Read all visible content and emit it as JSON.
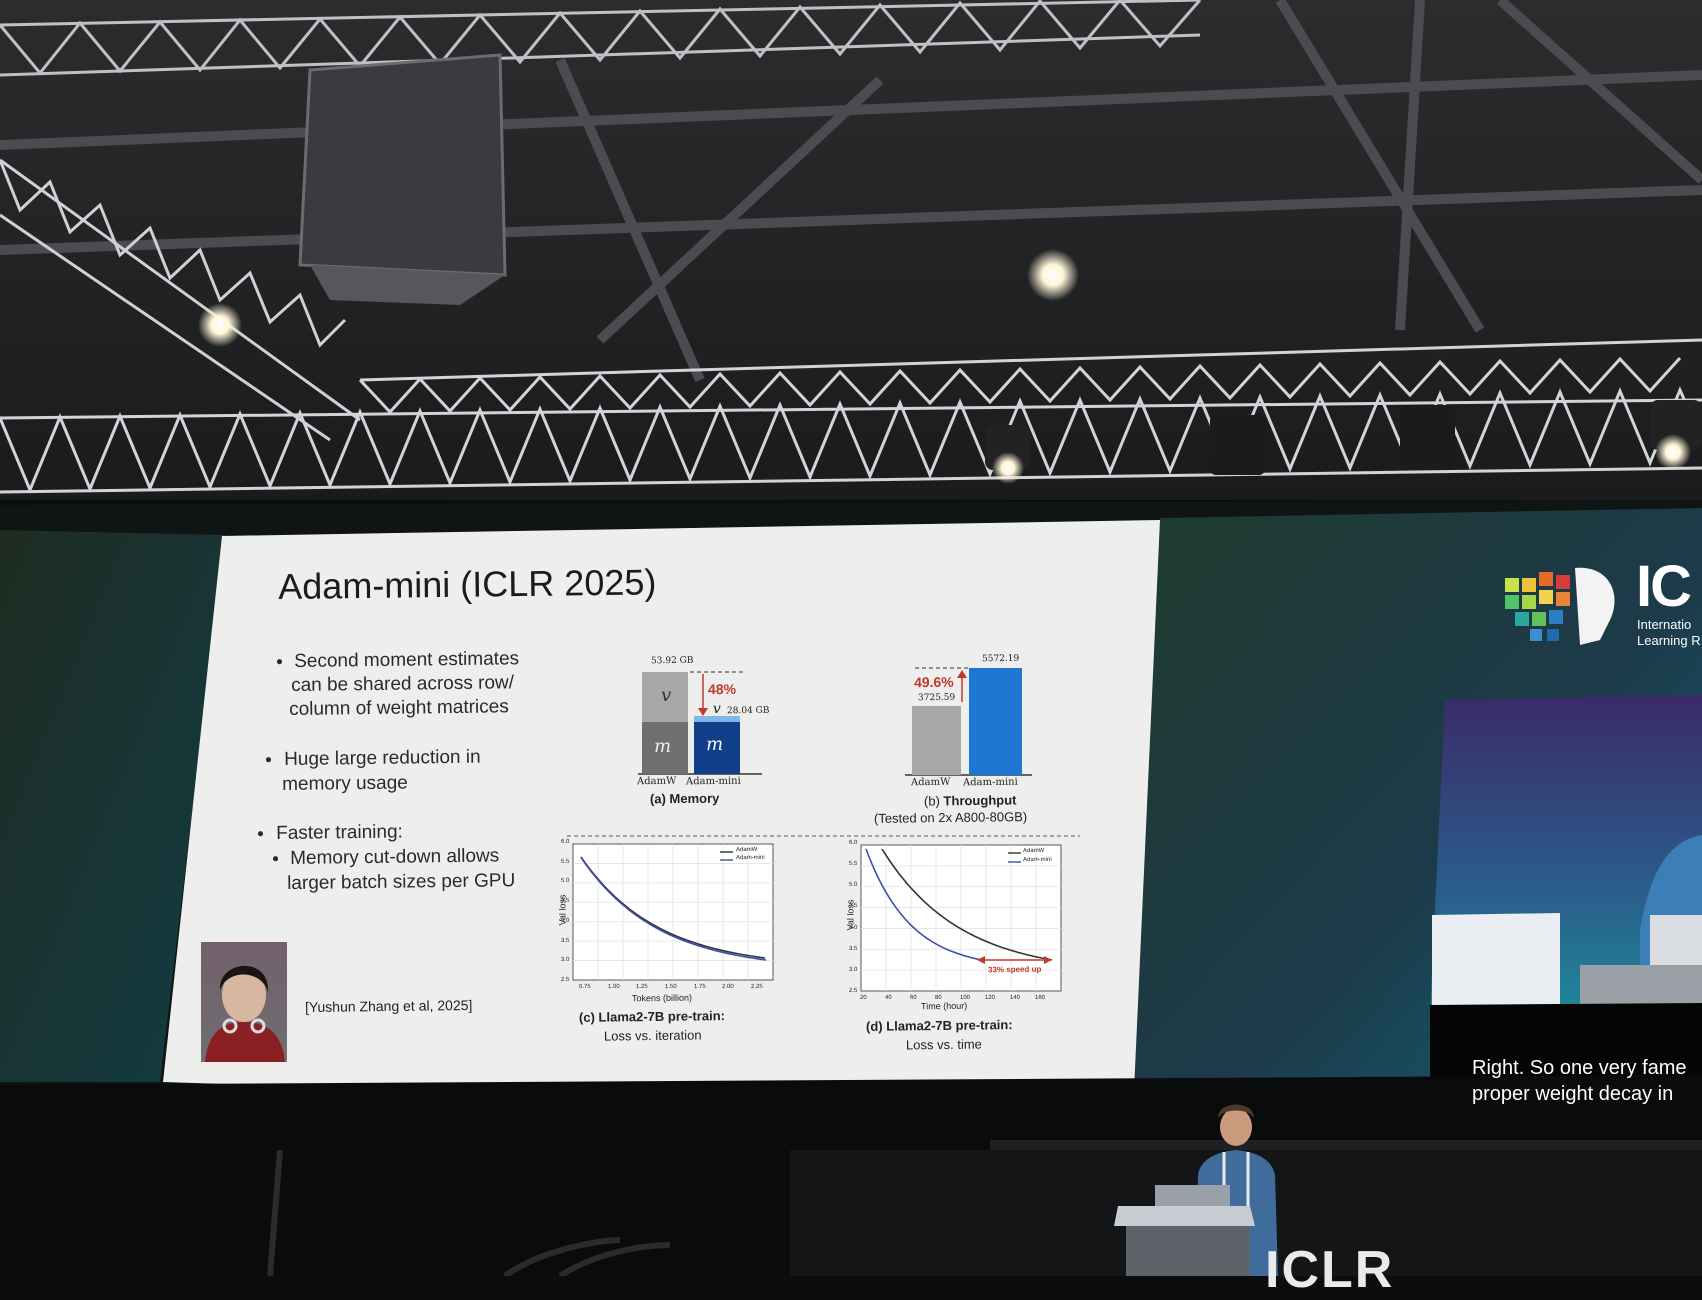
{
  "slide": {
    "title": "Adam-mini (ICLR 2025)",
    "bullets": [
      "Second moment estimates",
      "can be shared across row/",
      "column of weight matrices",
      "Huge large reduction in",
      "memory usage",
      "Faster training:",
      "Memory cut-down allows",
      "larger batch sizes per GPU"
    ],
    "citation": "[Yushun Zhang et al, 2025]",
    "memory_chart": {
      "adamw_total": "53.92 GB",
      "adamini_total": "28.04 GB",
      "reduction": "48%",
      "segment_v": "v",
      "segment_m": "m",
      "labels": [
        "AdamW",
        "Adam-mini"
      ],
      "caption": "(a) Memory"
    },
    "throughput_chart": {
      "adamw_value": "3725.59",
      "adamini_value": "5572.19",
      "increase": "49.6%",
      "labels": [
        "AdamW",
        "Adam-mini"
      ],
      "caption_bold": "Throughput",
      "caption_prefix": "(b) ",
      "caption_note": "(Tested on 2x A800-80GB)"
    },
    "loss_iter_chart": {
      "ylabel": "Val loss",
      "xlabel": "Tokens (billion)",
      "xticks": [
        "0.75",
        "1.00",
        "1.25",
        "1.50",
        "1.75",
        "2.00",
        "2.25"
      ],
      "yticks": [
        "6.0",
        "5.5",
        "5.0",
        "4.5",
        "4.0",
        "3.5",
        "3.0",
        "2.5"
      ],
      "legend": [
        "AdamW",
        "Adam-mini"
      ],
      "caption_bold": "(c) Llama2-7B pre-train:",
      "caption_line2": "Loss vs. iteration"
    },
    "loss_time_chart": {
      "ylabel": "Val loss",
      "xlabel": "Time (hour)",
      "xticks": [
        "20",
        "40",
        "60",
        "80",
        "100",
        "120",
        "140",
        "160"
      ],
      "yticks": [
        "6.0",
        "5.5",
        "5.0",
        "4.5",
        "4.0",
        "3.5",
        "3.0",
        "2.5"
      ],
      "legend": [
        "AdamW",
        "Adam-mini"
      ],
      "annotation": "33% speed up",
      "caption_bold": "(d) Llama2-7B pre-train:",
      "caption_line2": "Loss vs. time"
    }
  },
  "side_screen": {
    "logo_big": "IC",
    "logo_line1": "Internatio",
    "logo_line2": "Learning R",
    "subtitle_line1": "Right. So one very fame",
    "subtitle_line2": "proper weight decay in"
  },
  "stage_text": "ICLR",
  "colors": {
    "slide_bg": "#eeeeec",
    "adamw_gray": "#a8a8a8",
    "adamw_dark": "#6f6f6f",
    "adamini_blue": "#1f77d4",
    "adamini_navy": "#123f8a",
    "red": "#c0392b"
  }
}
